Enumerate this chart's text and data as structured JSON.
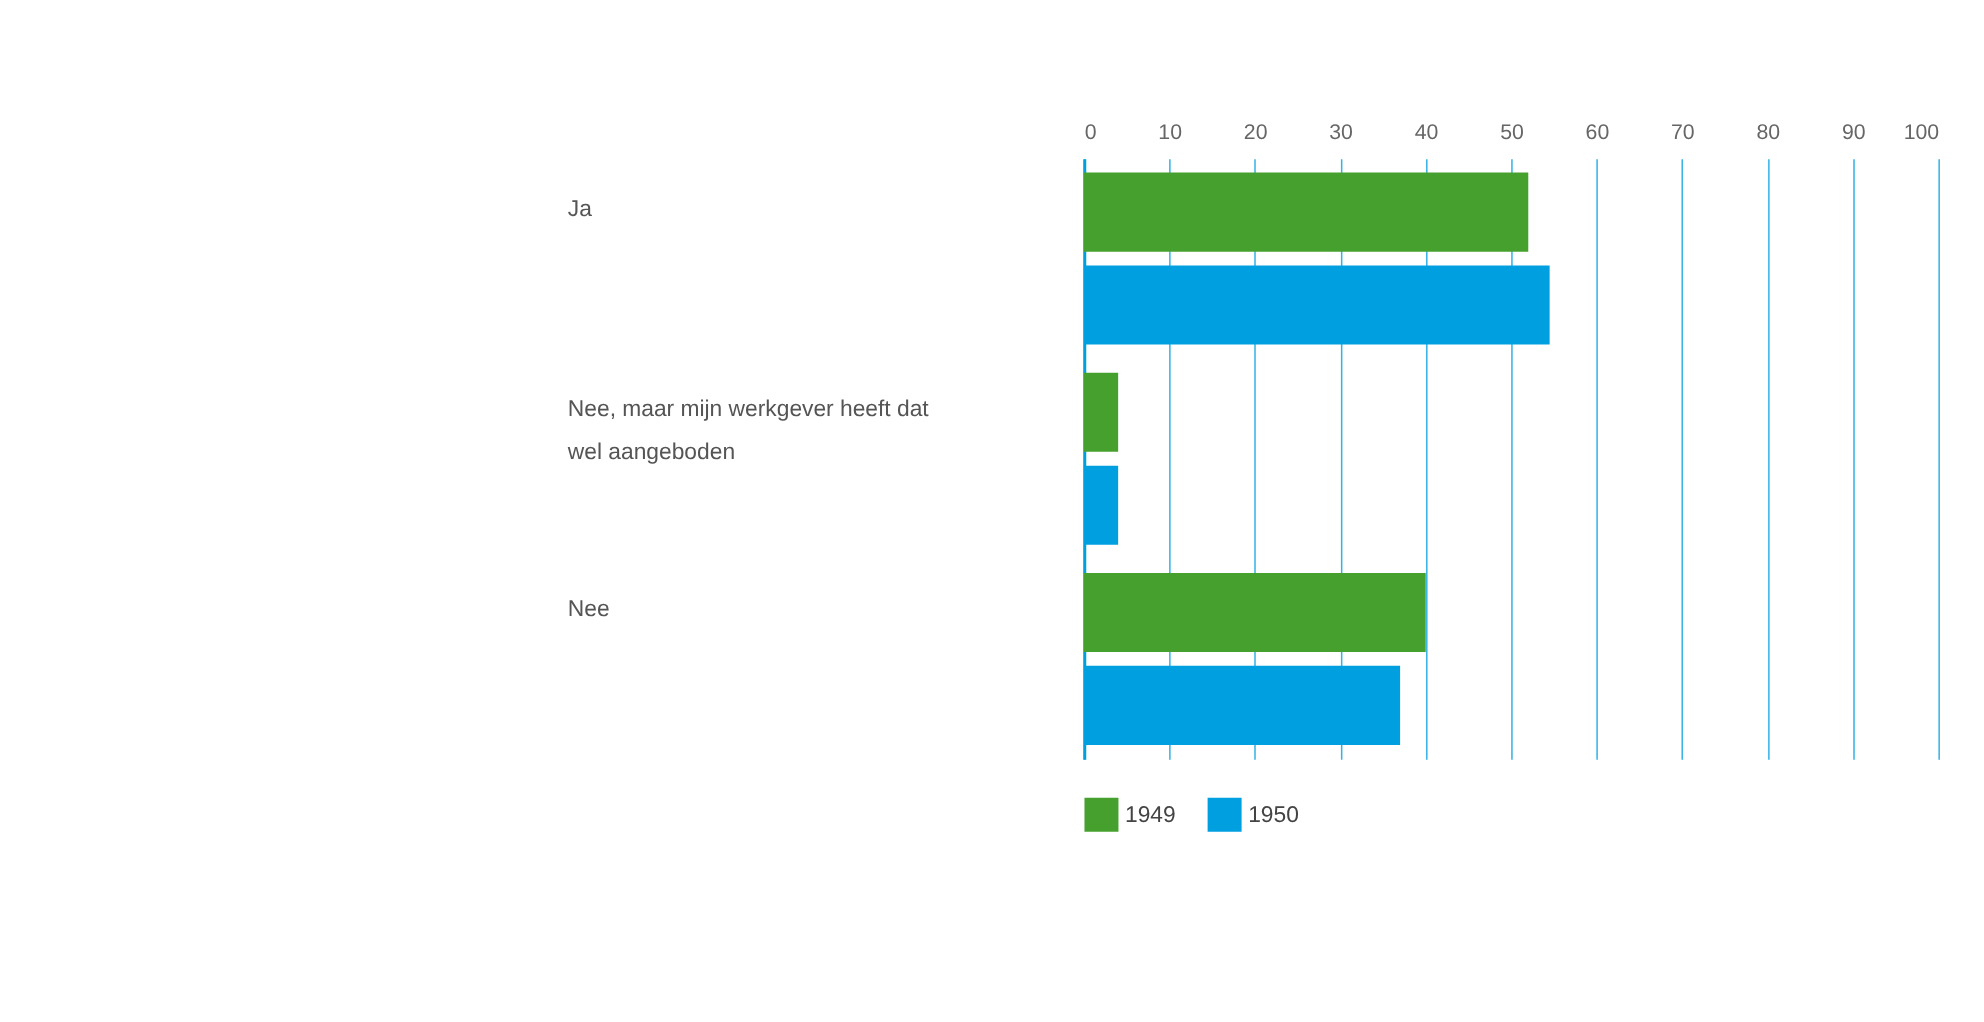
{
  "chart_data": {
    "type": "bar",
    "orientation": "horizontal",
    "categories": [
      "Ja",
      "Nee, maar mijn werkgever heeft dat wel aangeboden",
      "Nee"
    ],
    "series": [
      {
        "name": "1949",
        "color": "#46a02e",
        "values": [
          52,
          4,
          40
        ]
      },
      {
        "name": "1950",
        "color": "#009fe0",
        "values": [
          54.5,
          4,
          37
        ]
      }
    ],
    "xlim": [
      0,
      100
    ],
    "xticks": [
      0,
      10,
      20,
      30,
      40,
      50,
      60,
      70,
      80,
      90,
      100
    ],
    "grid": "x",
    "legend": "bottom left"
  }
}
